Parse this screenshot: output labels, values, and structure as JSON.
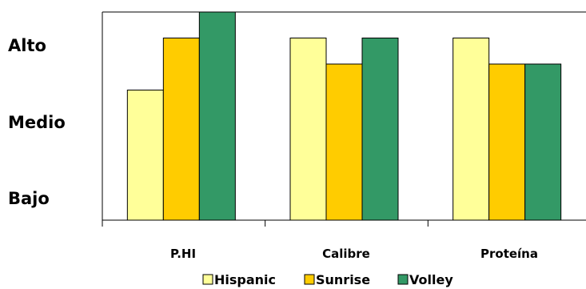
{
  "chart_data": {
    "type": "bar",
    "categories": [
      "P.HI",
      "Calibre",
      "Proteína"
    ],
    "y_levels": [
      "Bajo",
      "Medio",
      "Alto"
    ],
    "ylim": [
      0,
      8
    ],
    "series": [
      {
        "name": "Hispanic",
        "color": "#ffff99",
        "values": [
          5,
          7,
          7
        ]
      },
      {
        "name": "Sunrise",
        "color": "#ffcc00",
        "values": [
          7,
          6,
          6
        ]
      },
      {
        "name": "Volley",
        "color": "#339966",
        "values": [
          8,
          7,
          6
        ]
      }
    ],
    "grid": false,
    "legend_position": "bottom"
  }
}
